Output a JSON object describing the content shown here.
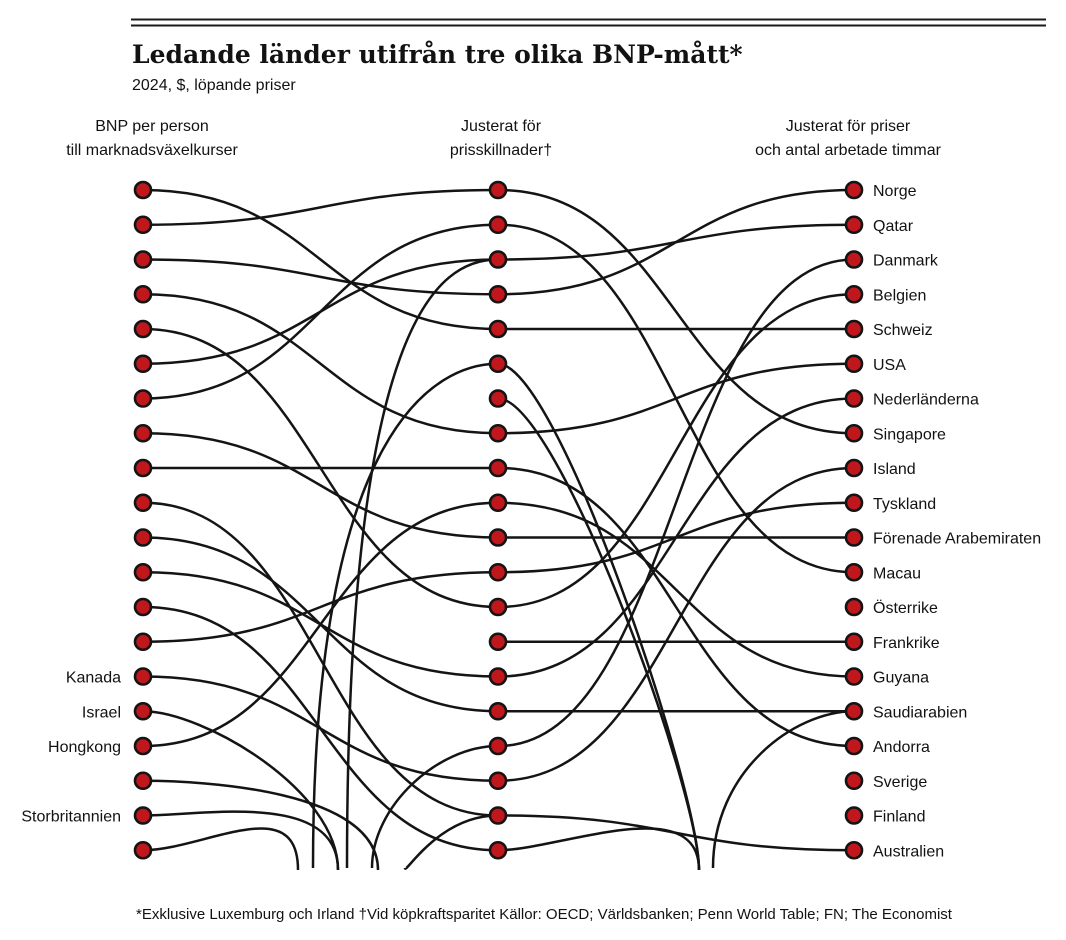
{
  "chart_data": {
    "type": "slope",
    "title": "Ledande länder utifrån tre olika BNP-mått*",
    "subtitle": "2024, $, löpande priser",
    "columns": [
      [
        "BNP per person",
        "till marknadsväxelkurser"
      ],
      [
        "Justerat för",
        "prisskillnader†"
      ],
      [
        "Justerat för priser",
        "och antal arbetade timmar"
      ]
    ],
    "visible_ranks": 20,
    "left_labels": [
      {
        "rank": 15,
        "label": "Kanada"
      },
      {
        "rank": 16,
        "label": "Israel"
      },
      {
        "rank": 17,
        "label": "Hongkong"
      },
      {
        "rank": 19,
        "label": "Storbritannien"
      }
    ],
    "right_labels": [
      "Norge",
      "Qatar",
      "Danmark",
      "Belgien",
      "Schweiz",
      "USA",
      "Nederländerna",
      "Singapore",
      "Island",
      "Tyskland",
      "Förenade Arabemiraten",
      "Macau",
      "Österrike",
      "Frankrike",
      "Guyana",
      "Saudiarabien",
      "Andorra",
      "Sverige",
      "Finland",
      "Australien"
    ],
    "links_left_to_middle": [
      [
        1,
        5
      ],
      [
        2,
        1
      ],
      [
        3,
        4
      ],
      [
        4,
        8
      ],
      [
        5,
        13
      ],
      [
        6,
        3
      ],
      [
        7,
        2
      ],
      [
        8,
        11
      ],
      [
        9,
        9
      ],
      [
        10,
        19
      ],
      [
        11,
        16
      ],
      [
        12,
        15
      ],
      [
        13,
        20
      ],
      [
        14,
        12
      ],
      [
        15,
        18
      ],
      [
        16,
        23
      ],
      [
        17,
        10
      ],
      [
        18,
        24
      ],
      [
        19,
        23
      ],
      [
        20,
        22
      ]
    ],
    "links_middle_to_right": [
      [
        1,
        8
      ],
      [
        2,
        12
      ],
      [
        3,
        2
      ],
      [
        4,
        1
      ],
      [
        5,
        5
      ],
      [
        6,
        22
      ],
      [
        7,
        22
      ],
      [
        8,
        6
      ],
      [
        9,
        17
      ],
      [
        10,
        15
      ],
      [
        11,
        11
      ],
      [
        12,
        10
      ],
      [
        13,
        4
      ],
      [
        14,
        14
      ],
      [
        15,
        7
      ],
      [
        16,
        16
      ],
      [
        17,
        3
      ],
      [
        18,
        9
      ],
      [
        19,
        20
      ],
      [
        20,
        22
      ]
    ],
    "footnote": "*Exklusive Luxemburg och Irland   †Vid köpkraftsparitet   Källor: OECD; Världsbanken; Penn World Table; FN;  The Economist"
  }
}
